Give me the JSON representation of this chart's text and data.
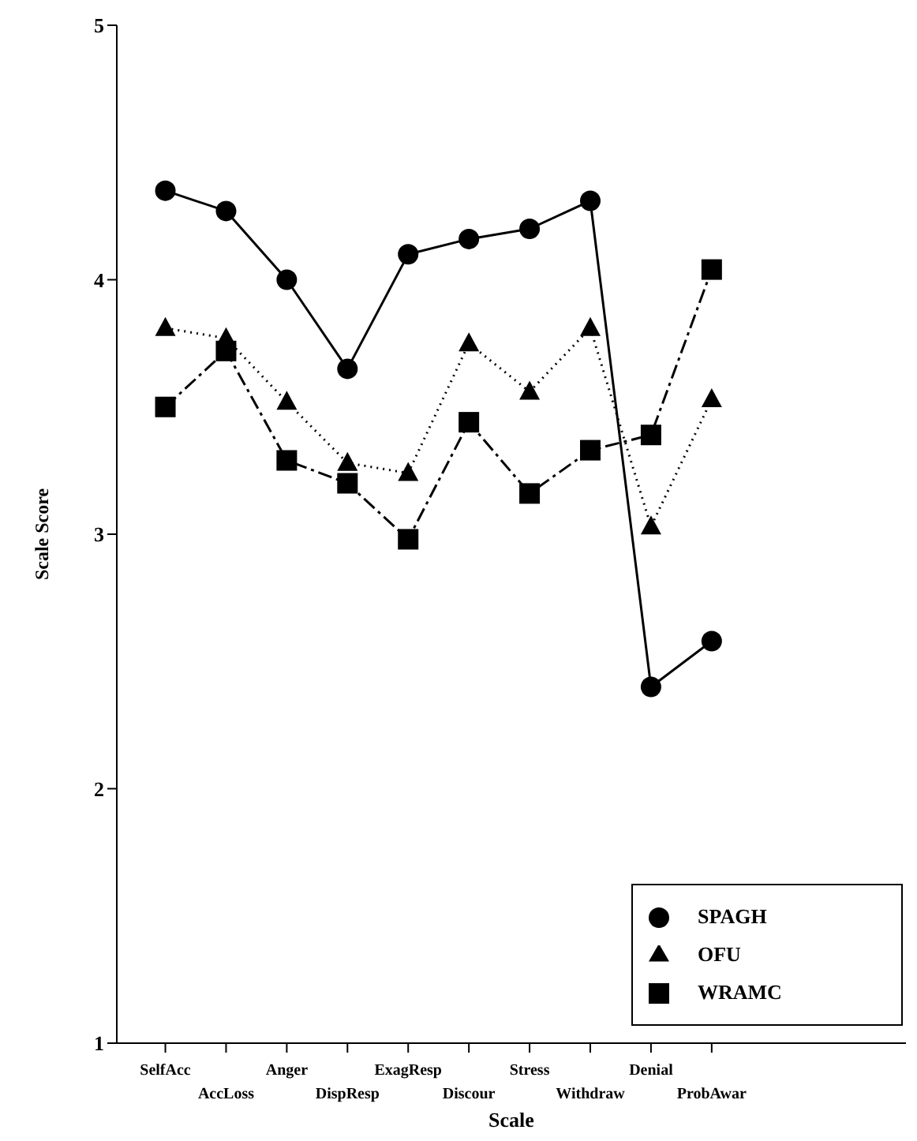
{
  "chart_data": {
    "type": "line",
    "xlabel": "Scale",
    "ylabel": "Scale Score",
    "categories": [
      "SelfAcc",
      "AccLoss",
      "Anger",
      "DispResp",
      "ExagResp",
      "Discour",
      "Stress",
      "Withdraw",
      "Denial",
      "ProbAwar"
    ],
    "series": [
      {
        "name": "SPAGH",
        "color": "#000000",
        "marker": "circle",
        "line_style": "solid",
        "values": [
          4.35,
          4.27,
          4.0,
          3.65,
          4.1,
          4.16,
          4.2,
          4.31,
          2.4,
          2.58
        ]
      },
      {
        "name": "OFU",
        "color": "#000000",
        "marker": "triangle",
        "line_style": "dotted",
        "values": [
          3.81,
          3.77,
          3.52,
          3.28,
          3.24,
          3.75,
          3.56,
          3.81,
          3.03,
          3.53
        ]
      },
      {
        "name": "WRAMC",
        "color": "#000000",
        "marker": "square",
        "line_style": "dashed",
        "values": [
          3.5,
          3.72,
          3.29,
          3.2,
          2.98,
          3.44,
          3.16,
          3.33,
          3.39,
          4.04
        ]
      }
    ],
    "ylim": [
      1,
      5
    ],
    "yticks": [
      1,
      2,
      3,
      4,
      5
    ],
    "grid": false,
    "legend": "bottom right"
  }
}
